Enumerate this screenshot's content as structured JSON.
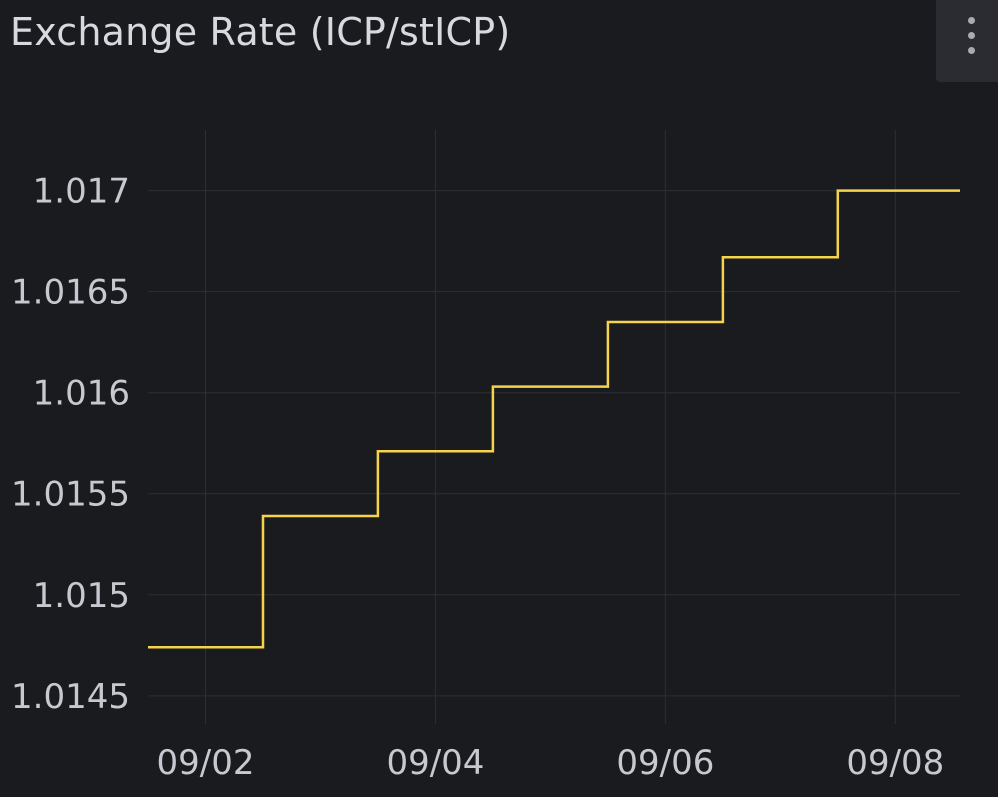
{
  "panel": {
    "title": "Exchange Rate (ICP/stICP)",
    "menu_icon": "kebab-menu-icon"
  },
  "colors": {
    "background": "#1a1b1f",
    "grid": "#2e2f34",
    "line": "#f5d44b",
    "text": "#c8c9d0"
  },
  "chart_data": {
    "type": "line",
    "title": "Exchange Rate (ICP/stICP)",
    "interpolation": "step-after",
    "grid": true,
    "legend": "none",
    "xlabel": "",
    "ylabel": "",
    "xlim": [
      "2024-09-01T12:00",
      "2024-09-08T13:30"
    ],
    "ylim": [
      1.01441,
      1.0173
    ],
    "x_ticks": [
      "09/02",
      "09/04",
      "09/06",
      "09/08"
    ],
    "y_ticks": [
      "1.0145",
      "1.015",
      "1.0155",
      "1.016",
      "1.0165",
      "1.017"
    ],
    "series": [
      {
        "points": [
          {
            "x": "2024-09-01T12:00",
            "y": 1.01474
          },
          {
            "x": "2024-09-02T12:00",
            "y": 1.01539
          },
          {
            "x": "2024-09-03T12:00",
            "y": 1.01571
          },
          {
            "x": "2024-09-04T12:00",
            "y": 1.01603
          },
          {
            "x": "2024-09-05T12:00",
            "y": 1.01635
          },
          {
            "x": "2024-09-06T12:00",
            "y": 1.01667
          },
          {
            "x": "2024-09-07T12:00",
            "y": 1.017
          },
          {
            "x": "2024-09-08T13:30",
            "y": 1.017
          }
        ]
      }
    ]
  }
}
